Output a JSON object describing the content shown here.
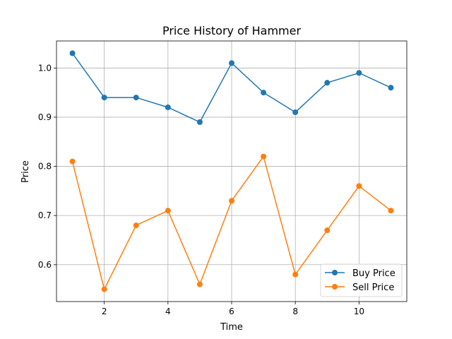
{
  "chart_data": {
    "type": "line",
    "title": "Price History of Hammer",
    "xlabel": "Time",
    "ylabel": "Price",
    "xlim": [
      0.5,
      11.5
    ],
    "ylim": [
      0.525,
      1.055
    ],
    "xticks": [
      2,
      4,
      6,
      8,
      10
    ],
    "xtick_labels": [
      "2",
      "4",
      "6",
      "8",
      "10"
    ],
    "yticks": [
      0.6,
      0.7,
      0.8,
      0.9,
      1.0
    ],
    "ytick_labels": [
      "0.6",
      "0.7",
      "0.8",
      "0.9",
      "1.0"
    ],
    "grid": true,
    "legend_position": "lower-right",
    "x": [
      1,
      2,
      3,
      4,
      5,
      6,
      7,
      8,
      9,
      10,
      11
    ],
    "series": [
      {
        "name": "Buy Price",
        "color": "#1f77b4",
        "values": [
          1.03,
          0.94,
          0.94,
          0.92,
          0.89,
          1.01,
          0.95,
          0.91,
          0.97,
          0.99,
          0.96
        ]
      },
      {
        "name": "Sell Price",
        "color": "#ff7f0e",
        "values": [
          0.81,
          0.55,
          0.68,
          0.71,
          0.56,
          0.73,
          0.82,
          0.58,
          0.67,
          0.76,
          0.71
        ]
      }
    ]
  }
}
